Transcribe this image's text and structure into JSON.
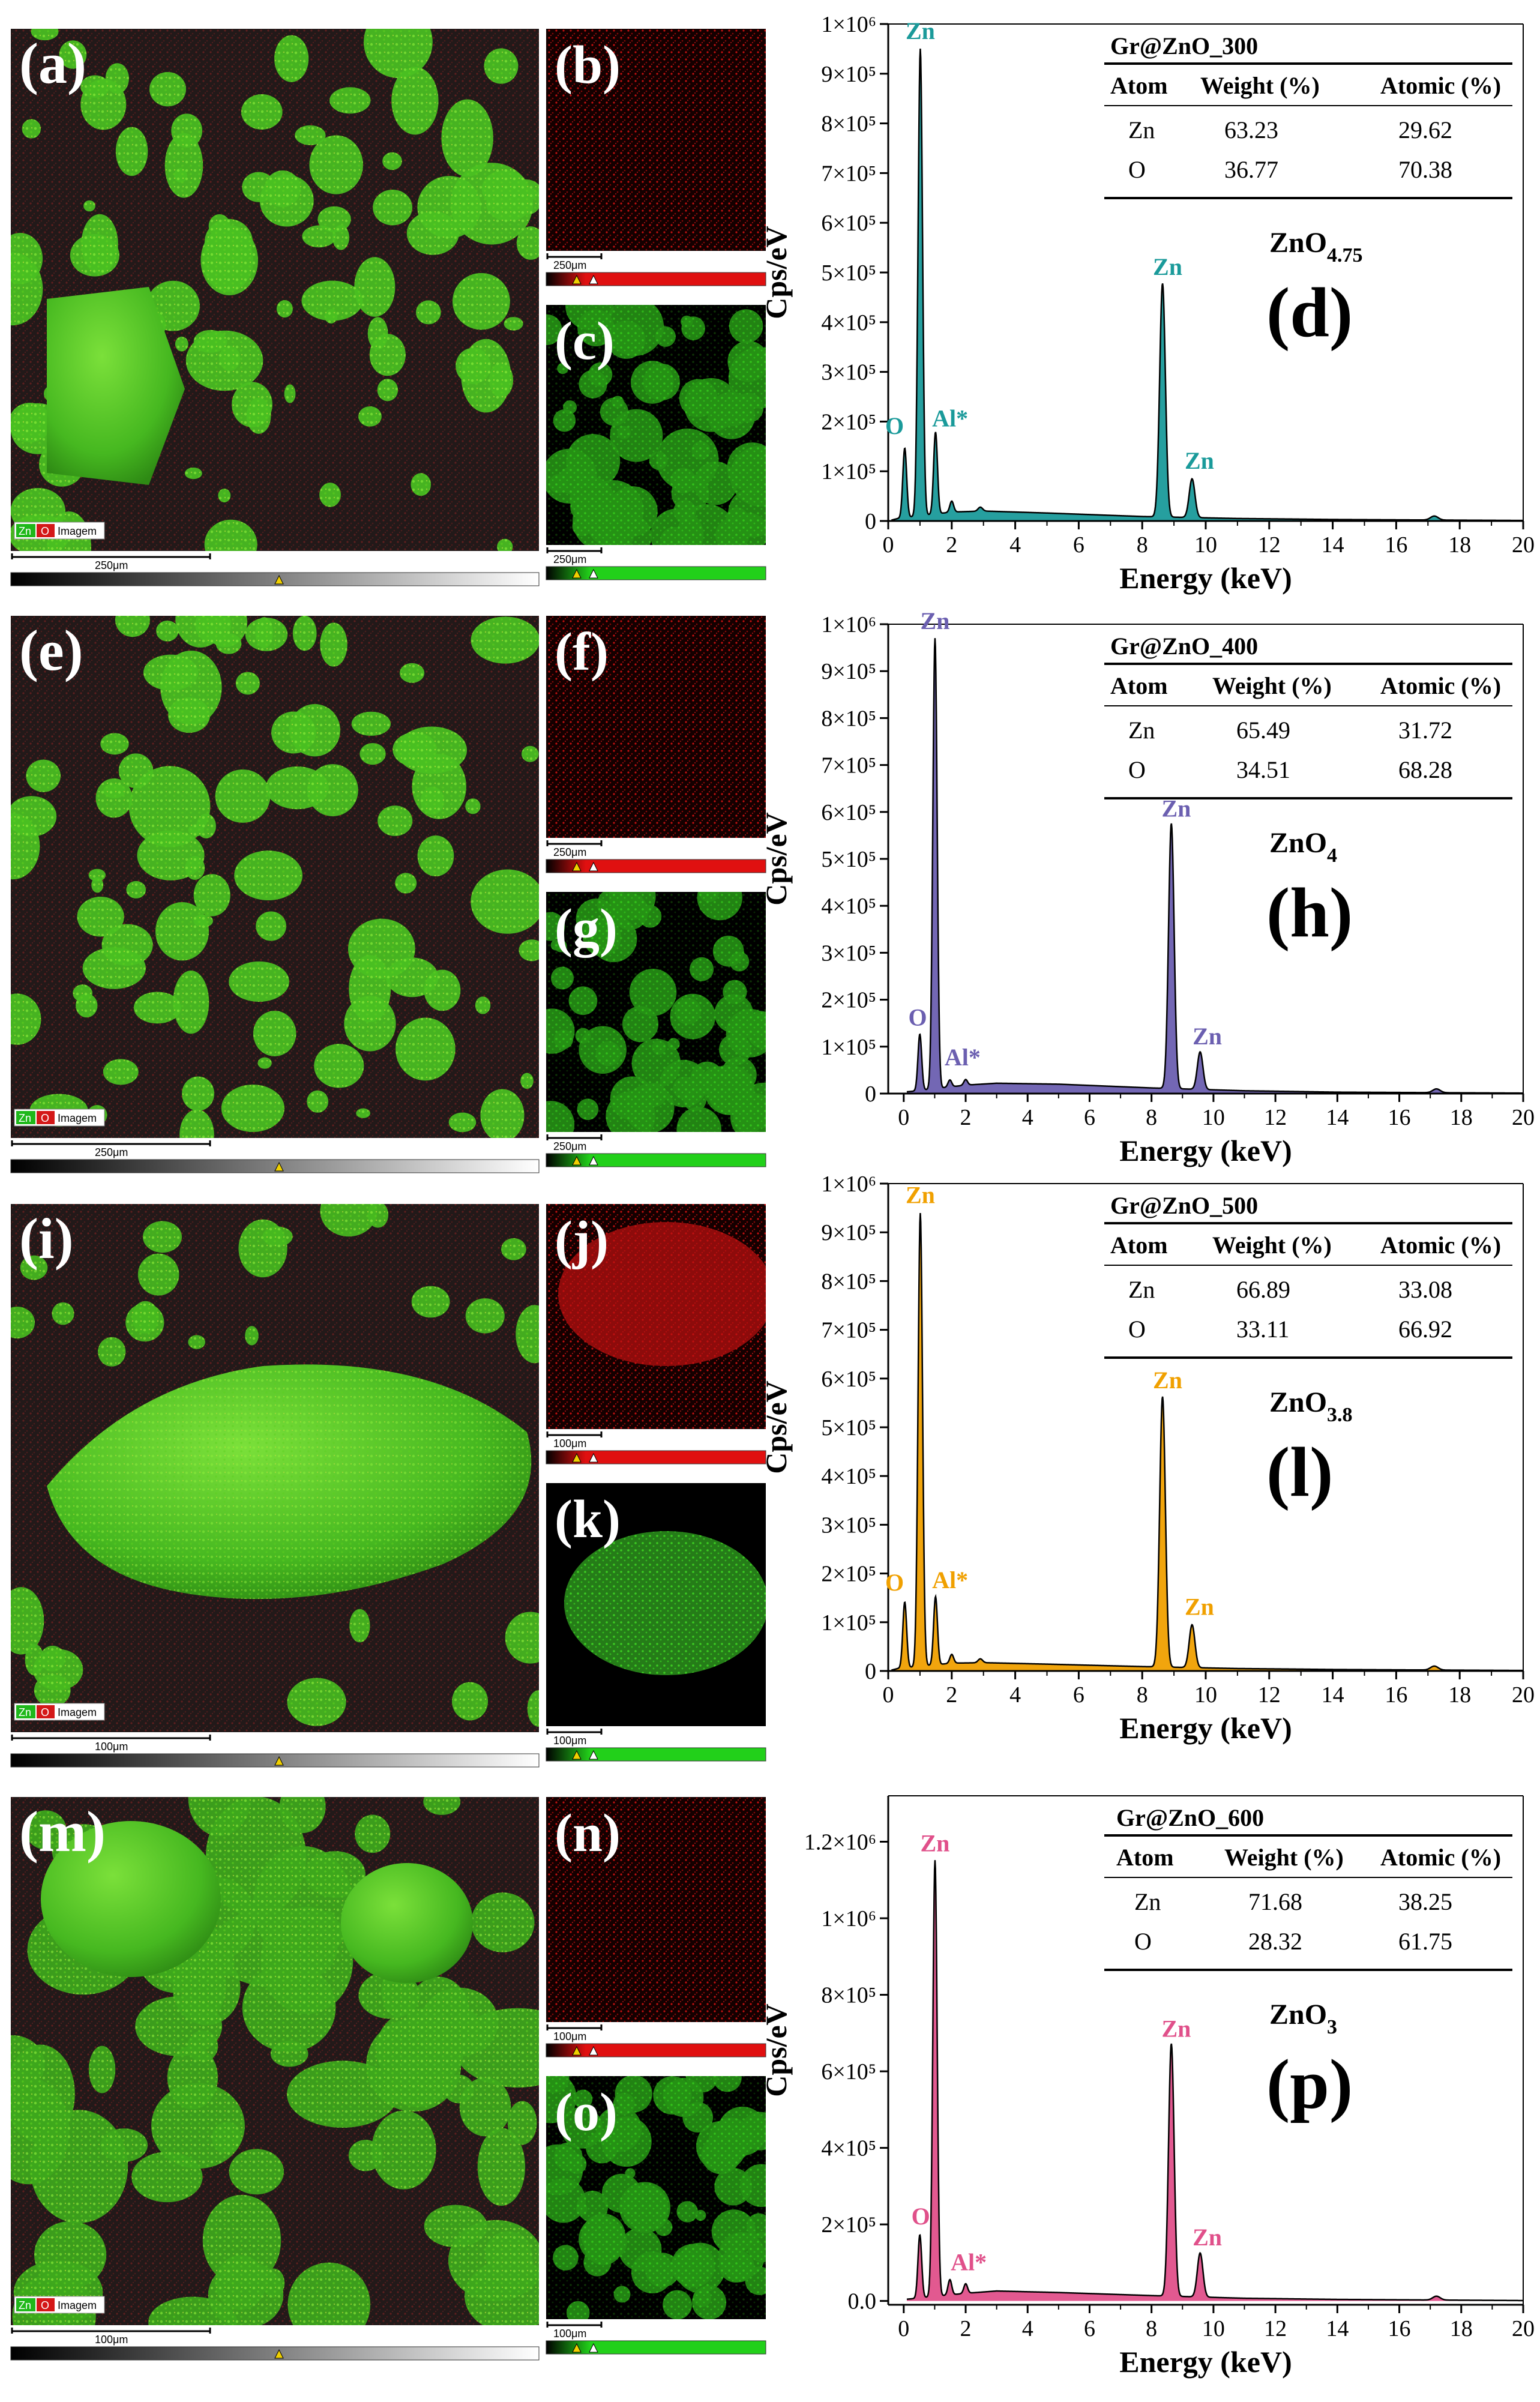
{
  "image_panels": [
    {
      "letter": "(a)",
      "kind": "overlay",
      "scale": "250μm",
      "legend": [
        "Zn",
        "O",
        "Imagem"
      ]
    },
    {
      "letter": "(b)",
      "kind": "O-map",
      "scale": "250μm"
    },
    {
      "letter": "(c)",
      "kind": "Zn-map",
      "scale": "250μm"
    },
    {
      "letter": "(e)",
      "kind": "overlay",
      "scale": "250μm",
      "legend": [
        "Zn",
        "O",
        "Imagem"
      ]
    },
    {
      "letter": "(f)",
      "kind": "O-map",
      "scale": "250μm"
    },
    {
      "letter": "(g)",
      "kind": "Zn-map",
      "scale": "250μm"
    },
    {
      "letter": "(i)",
      "kind": "overlay",
      "scale": "100μm",
      "legend": [
        "Zn",
        "O",
        "Imagem"
      ]
    },
    {
      "letter": "(j)",
      "kind": "O-map",
      "scale": "100μm"
    },
    {
      "letter": "(k)",
      "kind": "Zn-map",
      "scale": "100μm"
    },
    {
      "letter": "(m)",
      "kind": "overlay",
      "scale": "100μm",
      "legend": [
        "Zn",
        "O",
        "Imagem"
      ]
    },
    {
      "letter": "(n)",
      "kind": "O-map",
      "scale": "100μm"
    },
    {
      "letter": "(o)",
      "kind": "Zn-map",
      "scale": "100μm"
    }
  ],
  "chart_data": [
    {
      "type": "line",
      "panel_letter": "(d)",
      "color": "#1a9a9a",
      "xlabel": "Energy (keV)",
      "ylabel": "Cps/eV",
      "xlim": [
        0,
        20
      ],
      "ylim": [
        0,
        1000000
      ],
      "x_ticks": [
        "0",
        "2",
        "4",
        "6",
        "8",
        "10",
        "12",
        "14",
        "16",
        "18",
        "20"
      ],
      "y_ticks": [
        {
          "value": 0,
          "label": "0"
        },
        {
          "value": 100000,
          "label": "1×10⁵"
        },
        {
          "value": 200000,
          "label": "2×10⁵"
        },
        {
          "value": 300000,
          "label": "3×10⁵"
        },
        {
          "value": 400000,
          "label": "4×10⁵"
        },
        {
          "value": 500000,
          "label": "5×10⁵"
        },
        {
          "value": 600000,
          "label": "6×10⁵"
        },
        {
          "value": 700000,
          "label": "7×10⁵"
        },
        {
          "value": 800000,
          "label": "8×10⁵"
        },
        {
          "value": 900000,
          "label": "9×10⁵"
        },
        {
          "value": 1000000,
          "label": "1×10⁶"
        }
      ],
      "peaks": [
        {
          "x": 0.52,
          "y": 140000,
          "w": 0.06
        },
        {
          "x": 1.01,
          "y": 940000,
          "w": 0.07
        },
        {
          "x": 1.49,
          "y": 165000,
          "w": 0.06
        },
        {
          "x": 2.0,
          "y": 22000,
          "w": 0.06
        },
        {
          "x": 2.9,
          "y": 8000,
          "w": 0.07
        },
        {
          "x": 8.64,
          "y": 470000,
          "w": 0.09
        },
        {
          "x": 9.57,
          "y": 78000,
          "w": 0.09
        },
        {
          "x": 17.2,
          "y": 8000,
          "w": 0.12
        }
      ],
      "background": [
        [
          0,
          0
        ],
        [
          0.3,
          5000
        ],
        [
          2,
          18000
        ],
        [
          3,
          20000
        ],
        [
          5,
          16000
        ],
        [
          8,
          9000
        ],
        [
          11,
          5000
        ],
        [
          14,
          3000
        ],
        [
          17,
          2000
        ],
        [
          20,
          1000
        ]
      ],
      "peak_labels": [
        {
          "text": "Zn",
          "x": 1.01,
          "y": 970000
        },
        {
          "text": "O",
          "x": 0.2,
          "y": 175000
        },
        {
          "text": "Al*",
          "x": 1.95,
          "y": 190000
        },
        {
          "text": "Zn",
          "x": 8.8,
          "y": 495000
        },
        {
          "text": "Zn",
          "x": 9.8,
          "y": 105000
        }
      ],
      "table": {
        "title": "Gr@ZnO_300",
        "headers": [
          "Atom",
          "Weight (%)",
          "Atomic (%)"
        ],
        "rows": [
          [
            "Zn",
            "63.23",
            "29.62"
          ],
          [
            "O",
            "36.77",
            "70.38"
          ]
        ]
      },
      "formula": {
        "base": "ZnO",
        "sub": "4.75"
      },
      "big_letter": "(d)"
    },
    {
      "type": "line",
      "panel_letter": "(h)",
      "color": "#6b5fb0",
      "xlabel": "Energy (keV)",
      "ylabel": "Cps/eV",
      "xlim": [
        -0.5,
        20
      ],
      "ylim": [
        0,
        1000000
      ],
      "x_ticks": [
        "0",
        "2",
        "4",
        "6",
        "8",
        "10",
        "12",
        "14",
        "16",
        "18",
        "20"
      ],
      "y_ticks": [
        {
          "value": 0,
          "label": "0"
        },
        {
          "value": 100000,
          "label": "1×10⁵"
        },
        {
          "value": 200000,
          "label": "2×10⁵"
        },
        {
          "value": 300000,
          "label": "3×10⁵"
        },
        {
          "value": 400000,
          "label": "4×10⁵"
        },
        {
          "value": 500000,
          "label": "5×10⁵"
        },
        {
          "value": 600000,
          "label": "6×10⁵"
        },
        {
          "value": 700000,
          "label": "7×10⁵"
        },
        {
          "value": 800000,
          "label": "8×10⁵"
        },
        {
          "value": 900000,
          "label": "9×10⁵"
        },
        {
          "value": 1000000,
          "label": "1×10⁶"
        }
      ],
      "peaks": [
        {
          "x": 0.52,
          "y": 120000,
          "w": 0.06
        },
        {
          "x": 1.01,
          "y": 960000,
          "w": 0.07
        },
        {
          "x": 1.49,
          "y": 15000,
          "w": 0.06
        },
        {
          "x": 2.0,
          "y": 12000,
          "w": 0.06
        },
        {
          "x": 8.64,
          "y": 565000,
          "w": 0.09
        },
        {
          "x": 9.57,
          "y": 80000,
          "w": 0.09
        },
        {
          "x": 17.2,
          "y": 8000,
          "w": 0.12
        }
      ],
      "background": [
        [
          -0.5,
          0
        ],
        [
          0.3,
          5000
        ],
        [
          2,
          18000
        ],
        [
          3,
          22000
        ],
        [
          5,
          20000
        ],
        [
          8,
          12000
        ],
        [
          11,
          6000
        ],
        [
          14,
          3000
        ],
        [
          17,
          2000
        ],
        [
          20,
          1000
        ]
      ],
      "peak_labels": [
        {
          "text": "Zn",
          "x": 1.01,
          "y": 990000
        },
        {
          "text": "O",
          "x": 0.45,
          "y": 145000
        },
        {
          "text": "Al*",
          "x": 1.9,
          "y": 60000
        },
        {
          "text": "Zn",
          "x": 8.8,
          "y": 590000
        },
        {
          "text": "Zn",
          "x": 9.8,
          "y": 105000
        }
      ],
      "table": {
        "title": "Gr@ZnO_400",
        "headers": [
          "Atom",
          "Weight (%)",
          "Atomic (%)"
        ],
        "rows": [
          [
            "Zn",
            "65.49",
            "31.72"
          ],
          [
            "O",
            "34.51",
            "68.28"
          ]
        ]
      },
      "formula": {
        "base": "ZnO",
        "sub": "4"
      },
      "big_letter": "(h)"
    },
    {
      "type": "line",
      "panel_letter": "(l)",
      "color": "#f0a000",
      "xlabel": "Energy (keV)",
      "ylabel": "Cps/eV",
      "xlim": [
        0,
        20
      ],
      "ylim": [
        0,
        1000000
      ],
      "x_ticks": [
        "0",
        "2",
        "4",
        "6",
        "8",
        "10",
        "12",
        "14",
        "16",
        "18",
        "20"
      ],
      "y_ticks": [
        {
          "value": 0,
          "label": "0"
        },
        {
          "value": 100000,
          "label": "1×10⁵"
        },
        {
          "value": 200000,
          "label": "2×10⁵"
        },
        {
          "value": 300000,
          "label": "3×10⁵"
        },
        {
          "value": 400000,
          "label": "4×10⁵"
        },
        {
          "value": 500000,
          "label": "5×10⁵"
        },
        {
          "value": 600000,
          "label": "6×10⁵"
        },
        {
          "value": 700000,
          "label": "7×10⁵"
        },
        {
          "value": 800000,
          "label": "8×10⁵"
        },
        {
          "value": 900000,
          "label": "9×10⁵"
        },
        {
          "value": 1000000,
          "label": "1×10⁶"
        }
      ],
      "peaks": [
        {
          "x": 0.52,
          "y": 135000,
          "w": 0.06
        },
        {
          "x": 1.01,
          "y": 930000,
          "w": 0.07
        },
        {
          "x": 1.49,
          "y": 140000,
          "w": 0.06
        },
        {
          "x": 2.0,
          "y": 18000,
          "w": 0.06
        },
        {
          "x": 2.9,
          "y": 8000,
          "w": 0.07
        },
        {
          "x": 8.64,
          "y": 555000,
          "w": 0.09
        },
        {
          "x": 9.57,
          "y": 88000,
          "w": 0.09
        },
        {
          "x": 17.2,
          "y": 8000,
          "w": 0.12
        }
      ],
      "background": [
        [
          0,
          0
        ],
        [
          0.3,
          5000
        ],
        [
          2,
          16000
        ],
        [
          3,
          17000
        ],
        [
          5,
          14000
        ],
        [
          8,
          9000
        ],
        [
          11,
          5000
        ],
        [
          14,
          3000
        ],
        [
          17,
          2000
        ],
        [
          20,
          1000
        ]
      ],
      "peak_labels": [
        {
          "text": "Zn",
          "x": 1.01,
          "y": 960000
        },
        {
          "text": "O",
          "x": 0.2,
          "y": 165000
        },
        {
          "text": "Al*",
          "x": 1.95,
          "y": 170000
        },
        {
          "text": "Zn",
          "x": 8.8,
          "y": 580000
        },
        {
          "text": "Zn",
          "x": 9.8,
          "y": 115000
        }
      ],
      "table": {
        "title": "Gr@ZnO_500",
        "headers": [
          "Atom",
          "Weight (%)",
          "Atomic (%)"
        ],
        "rows": [
          [
            "Zn",
            "66.89",
            "33.08"
          ],
          [
            "O",
            "33.11",
            "66.92"
          ]
        ]
      },
      "formula": {
        "base": "ZnO",
        "sub": "3.8"
      },
      "big_letter": "(l)"
    },
    {
      "type": "line",
      "panel_letter": "(p)",
      "color": "#e0508a",
      "xlabel": "Energy (keV)",
      "ylabel": "Cps/eV",
      "xlim": [
        -0.5,
        20
      ],
      "ylim": [
        -10000,
        1320000
      ],
      "x_ticks": [
        "0",
        "2",
        "4",
        "6",
        "8",
        "10",
        "12",
        "14",
        "16",
        "18",
        "20"
      ],
      "y_ticks": [
        {
          "value": 0,
          "label": "0.0"
        },
        {
          "value": 200000,
          "label": "2×10⁵"
        },
        {
          "value": 400000,
          "label": "4×10⁵"
        },
        {
          "value": 600000,
          "label": "6×10⁵"
        },
        {
          "value": 800000,
          "label": "8×10⁵"
        },
        {
          "value": 1000000,
          "label": "1×10⁶"
        },
        {
          "value": 1200000,
          "label": "1.2×10⁶"
        }
      ],
      "peaks": [
        {
          "x": 0.52,
          "y": 165000,
          "w": 0.06
        },
        {
          "x": 1.01,
          "y": 1140000,
          "w": 0.07
        },
        {
          "x": 1.49,
          "y": 40000,
          "w": 0.06
        },
        {
          "x": 2.0,
          "y": 25000,
          "w": 0.06
        },
        {
          "x": 8.64,
          "y": 660000,
          "w": 0.09
        },
        {
          "x": 9.57,
          "y": 115000,
          "w": 0.09
        },
        {
          "x": 17.2,
          "y": 10000,
          "w": 0.12
        }
      ],
      "background": [
        [
          -0.5,
          0
        ],
        [
          0.3,
          6000
        ],
        [
          2,
          20000
        ],
        [
          3,
          26000
        ],
        [
          5,
          22000
        ],
        [
          8,
          14000
        ],
        [
          11,
          7000
        ],
        [
          14,
          4000
        ],
        [
          17,
          2500
        ],
        [
          20,
          1000
        ]
      ],
      "peak_labels": [
        {
          "text": "Zn",
          "x": 1.01,
          "y": 1175000
        },
        {
          "text": "O",
          "x": 0.55,
          "y": 200000
        },
        {
          "text": "Al*",
          "x": 2.1,
          "y": 80000
        },
        {
          "text": "Zn",
          "x": 8.8,
          "y": 690000
        },
        {
          "text": "Zn",
          "x": 9.8,
          "y": 145000
        }
      ],
      "table": {
        "title": "Gr@ZnO_600",
        "headers": [
          "Atom",
          "Weight (%)",
          "Atomic (%)"
        ],
        "rows": [
          [
            "Zn",
            "71.68",
            "38.25"
          ],
          [
            "O",
            "28.32",
            "61.75"
          ]
        ]
      },
      "formula": {
        "base": "ZnO",
        "sub": "3"
      },
      "big_letter": "(p)"
    }
  ]
}
